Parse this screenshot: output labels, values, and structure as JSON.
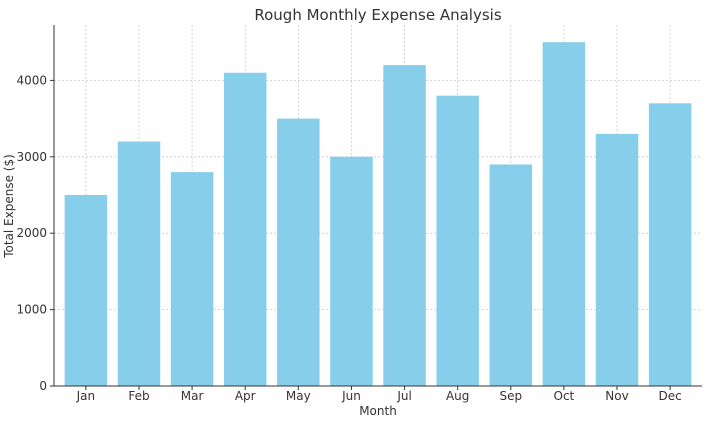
{
  "chart_data": {
    "type": "bar",
    "title": "Rough Monthly Expense Analysis",
    "xlabel": "Month",
    "ylabel": "Total Expense ($)",
    "categories": [
      "Jan",
      "Feb",
      "Mar",
      "Apr",
      "May",
      "Jun",
      "Jul",
      "Aug",
      "Sep",
      "Oct",
      "Nov",
      "Dec"
    ],
    "values": [
      2500,
      3200,
      2800,
      4100,
      3500,
      3000,
      4200,
      3800,
      2900,
      4500,
      3300,
      3700
    ],
    "yticks": [
      0,
      1000,
      2000,
      3000,
      4000
    ],
    "ylim": [
      0,
      4725
    ],
    "grid": true,
    "bar_color": "#87CEEB"
  }
}
